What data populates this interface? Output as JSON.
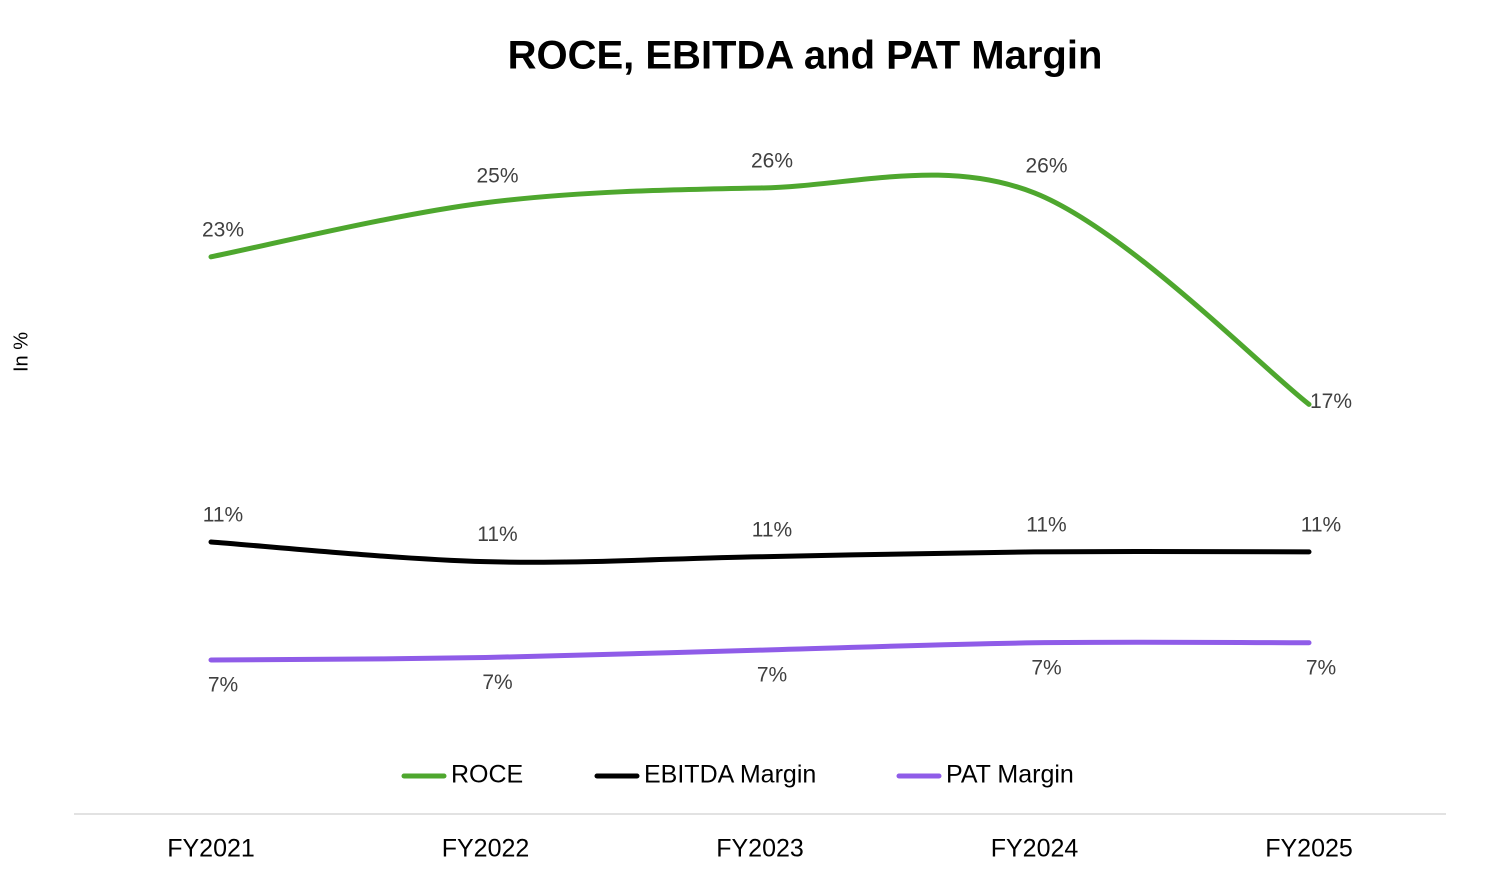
{
  "chart_data": {
    "type": "line",
    "title": "ROCE, EBITDA and PAT Margin",
    "y_label": "In %",
    "categories": [
      "FY2021",
      "FY2022",
      "FY2023",
      "FY2024",
      "FY2025"
    ],
    "series": [
      {
        "name": "ROCE",
        "color": "#4ea72e",
        "values": [
          23.0,
          25.2,
          25.8,
          25.6,
          17.0
        ],
        "value_labels": [
          "23%",
          "25%",
          "26%",
          "26%",
          "17%"
        ]
      },
      {
        "name": "EBITDA Margin",
        "color": "#000000",
        "values": [
          11.4,
          10.6,
          10.8,
          11.0,
          11.0
        ],
        "value_labels": [
          "11%",
          "11%",
          "11%",
          "11%",
          "11%"
        ]
      },
      {
        "name": "PAT Margin",
        "color": "#8f5ce8",
        "values": [
          6.6,
          6.7,
          7.0,
          7.3,
          7.3
        ],
        "value_labels": [
          "7%",
          "7%",
          "7%",
          "7%",
          "7%"
        ]
      }
    ]
  }
}
